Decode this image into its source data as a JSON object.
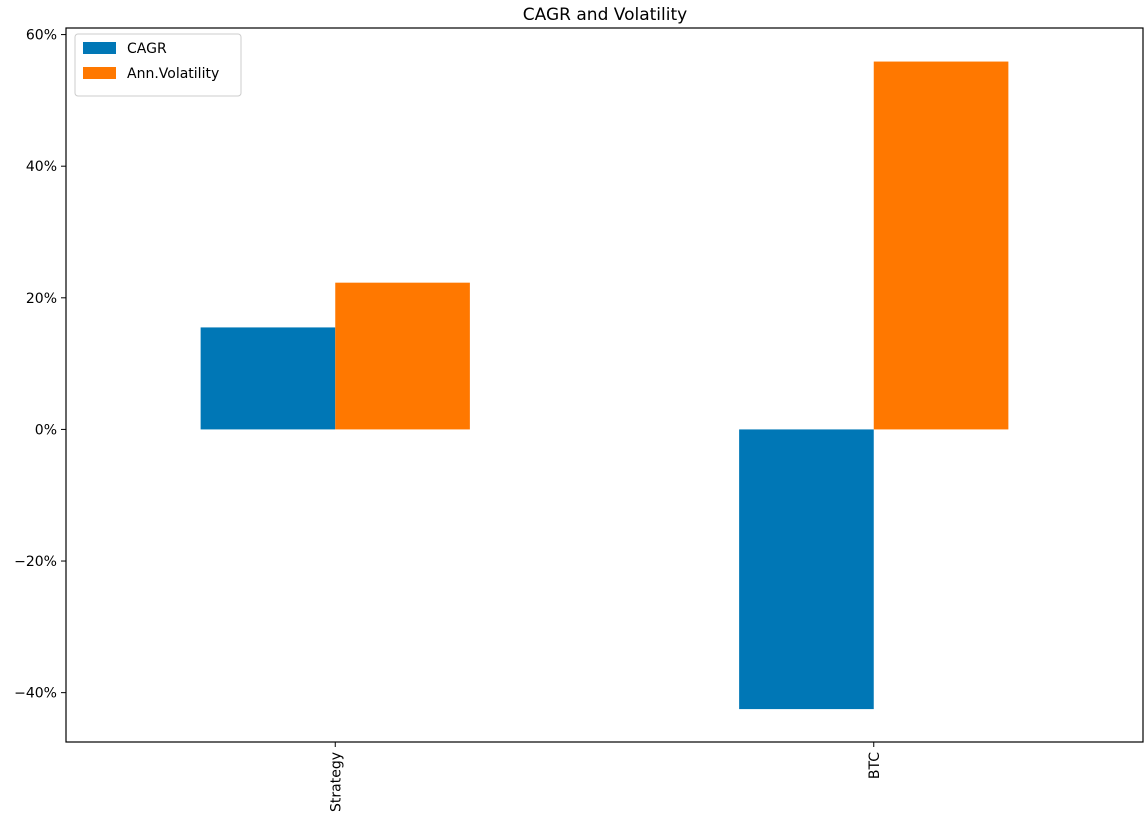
{
  "chart_data": {
    "type": "bar",
    "title": "CAGR and Volatility",
    "xlabel": "",
    "ylabel": "",
    "categories": [
      "Strategy",
      "BTC"
    ],
    "series": [
      {
        "name": "CAGR",
        "values": [
          15.5,
          -42.5
        ],
        "color": "#0077b6"
      },
      {
        "name": "Ann.Volatility",
        "values": [
          22.3,
          55.9
        ],
        "color": "#ff7800"
      }
    ],
    "ylim": [
      -47.5,
      61.0
    ],
    "yticks": [
      -40,
      -20,
      0,
      20,
      40,
      60
    ],
    "ytick_labels": [
      "−40%",
      "−20%",
      "0%",
      "20%",
      "40%",
      "60%"
    ],
    "grid": false,
    "legend_position": "top-left",
    "xtick_rotation": "vertical"
  }
}
